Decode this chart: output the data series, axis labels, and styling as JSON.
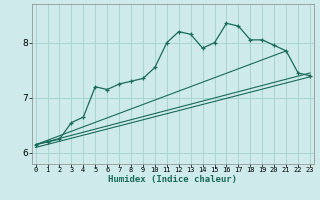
{
  "xlabel": "Humidex (Indice chaleur)",
  "bg_color": "#ceeaea",
  "grid_color": "#a8d4d4",
  "line_color": "#1a6b5a",
  "x_values": [
    0,
    1,
    2,
    3,
    4,
    5,
    6,
    7,
    8,
    9,
    10,
    11,
    12,
    13,
    14,
    15,
    16,
    17,
    18,
    19,
    20,
    21,
    22,
    23
  ],
  "series1": [
    6.15,
    6.2,
    6.25,
    6.55,
    6.65,
    7.2,
    7.15,
    7.25,
    7.3,
    7.35,
    7.55,
    8.0,
    8.2,
    8.15,
    7.9,
    8.0,
    8.35,
    8.3,
    8.05,
    8.05,
    7.95,
    7.85,
    7.45,
    7.4
  ],
  "series2_x": [
    0,
    21
  ],
  "series2_y": [
    6.15,
    7.85
  ],
  "series3_x": [
    0,
    23
  ],
  "series3_y": [
    6.15,
    7.45
  ],
  "series4_x": [
    0,
    23
  ],
  "series4_y": [
    6.1,
    7.38
  ],
  "ylim": [
    5.8,
    8.7
  ],
  "yticks": [
    6,
    7,
    8
  ],
  "xlim": [
    -0.3,
    23.3
  ],
  "xticks": [
    0,
    1,
    2,
    3,
    4,
    5,
    6,
    7,
    8,
    9,
    10,
    11,
    12,
    13,
    14,
    15,
    16,
    17,
    18,
    19,
    20,
    21,
    22,
    23
  ]
}
